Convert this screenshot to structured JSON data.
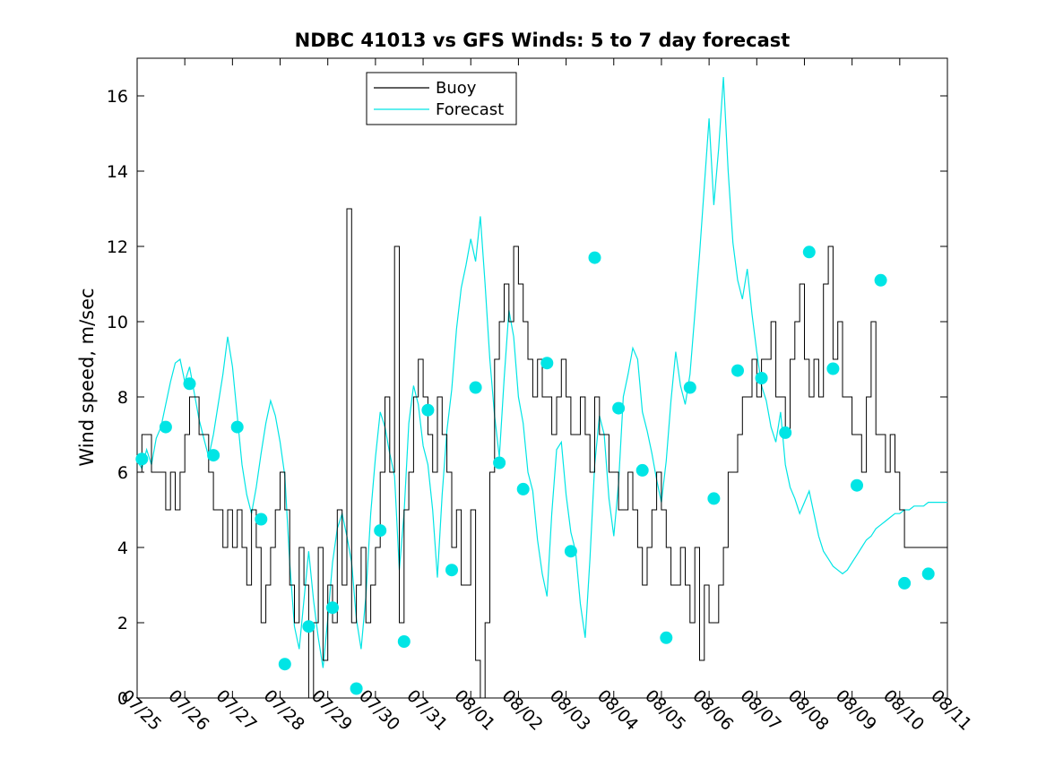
{
  "chart_data": {
    "type": "line",
    "title": "NDBC 41013 vs GFS Winds: 5 to 7 day forecast",
    "xlabel": "",
    "ylabel": "Wind speed, m/sec",
    "xlim": [
      0,
      17
    ],
    "ylim": [
      0,
      17
    ],
    "x_tick_labels": [
      "07/25",
      "07/26",
      "07/27",
      "07/28",
      "07/29",
      "07/30",
      "07/31",
      "08/01",
      "08/02",
      "08/03",
      "08/04",
      "08/05",
      "08/06",
      "08/07",
      "08/08",
      "08/09",
      "08/10",
      "08/11"
    ],
    "y_ticks": [
      0,
      2,
      4,
      6,
      8,
      10,
      12,
      14,
      16
    ],
    "grid": false,
    "legend_position": "top-left",
    "colors": {
      "buoy": "#000000",
      "forecast": "#00e5e5"
    },
    "series": [
      {
        "name": "Buoy",
        "x": [
          0,
          0.1,
          0.2,
          0.3,
          0.4,
          0.5,
          0.6,
          0.7,
          0.8,
          0.9,
          1.0,
          1.1,
          1.2,
          1.3,
          1.4,
          1.5,
          1.6,
          1.7,
          1.8,
          1.9,
          2.0,
          2.1,
          2.2,
          2.3,
          2.4,
          2.5,
          2.6,
          2.7,
          2.8,
          2.9,
          3.0,
          3.1,
          3.2,
          3.3,
          3.4,
          3.5,
          3.6,
          3.7,
          3.8,
          3.9,
          4.0,
          4.1,
          4.2,
          4.3,
          4.4,
          4.5,
          4.6,
          4.7,
          4.8,
          4.9,
          5.0,
          5.1,
          5.2,
          5.3,
          5.4,
          5.5,
          5.6,
          5.7,
          5.8,
          5.9,
          6.0,
          6.1,
          6.2,
          6.3,
          6.4,
          6.5,
          6.6,
          6.7,
          6.8,
          6.9,
          7.0,
          7.1,
          7.2,
          7.3,
          7.4,
          7.5,
          7.6,
          7.7,
          7.8,
          7.9,
          8.0,
          8.1,
          8.2,
          8.3,
          8.4,
          8.5,
          8.6,
          8.7,
          8.8,
          8.9,
          9.0,
          9.1,
          9.2,
          9.3,
          9.4,
          9.5,
          9.6,
          9.7,
          9.8,
          9.9,
          10.0,
          10.1,
          10.2,
          10.3,
          10.4,
          10.5,
          10.6,
          10.7,
          10.8,
          10.9,
          11.0,
          11.1,
          11.2,
          11.3,
          11.4,
          11.5,
          11.6,
          11.7,
          11.8,
          11.9,
          12.0,
          12.1,
          12.2,
          12.3,
          12.4,
          12.5,
          12.6,
          12.7,
          12.8,
          12.9,
          13.0,
          13.1,
          13.2,
          13.3,
          13.4,
          13.5,
          13.6,
          13.7,
          13.8,
          13.9,
          14.0,
          14.1,
          14.2,
          14.3,
          14.4,
          14.5,
          14.6,
          14.7,
          14.8,
          14.9,
          15.0,
          15.1,
          15.2,
          15.3,
          15.4,
          15.5,
          15.6,
          15.7,
          15.8,
          15.9,
          16.0,
          16.1,
          16.2,
          16.3,
          16.4,
          16.5,
          16.6,
          16.7,
          16.8,
          16.9,
          17.0
        ],
        "values": [
          6,
          7,
          7,
          6,
          6,
          6,
          5,
          6,
          5,
          6,
          7,
          8,
          8,
          7,
          7,
          6,
          5,
          5,
          4,
          5,
          4,
          5,
          4,
          3,
          5,
          4,
          2,
          3,
          4,
          5,
          6,
          5,
          3,
          2,
          4,
          3,
          0,
          2,
          4,
          1,
          3,
          2,
          5,
          3,
          13,
          2,
          3,
          4,
          2,
          3,
          4,
          6,
          8,
          6,
          12,
          2,
          5,
          6,
          8,
          9,
          8,
          7,
          6,
          8,
          7,
          6,
          4,
          5,
          3,
          3,
          5,
          1,
          0,
          2,
          6,
          9,
          10,
          11,
          10,
          12,
          11,
          10,
          9,
          8,
          9,
          8,
          8,
          7,
          8,
          9,
          8,
          7,
          7,
          8,
          7,
          6,
          8,
          7,
          7,
          6,
          6,
          5,
          5,
          6,
          5,
          4,
          3,
          4,
          5,
          6,
          5,
          4,
          3,
          3,
          4,
          3,
          2,
          4,
          1,
          3,
          2,
          2,
          3,
          4,
          6,
          6,
          7,
          8,
          8,
          9,
          8,
          9,
          9,
          10,
          8,
          8,
          7,
          9,
          10,
          11,
          9,
          8,
          9,
          8,
          11,
          12,
          9,
          10,
          8,
          8,
          7,
          7,
          6,
          8,
          10,
          7,
          7,
          6,
          7,
          6,
          5,
          4,
          4,
          4,
          4,
          4,
          4,
          4,
          4,
          4,
          4
        ]
      },
      {
        "name": "Forecast",
        "x": [
          0,
          0.1,
          0.2,
          0.3,
          0.4,
          0.5,
          0.6,
          0.7,
          0.8,
          0.9,
          1.0,
          1.1,
          1.2,
          1.3,
          1.4,
          1.5,
          1.6,
          1.7,
          1.8,
          1.9,
          2.0,
          2.1,
          2.2,
          2.3,
          2.4,
          2.5,
          2.6,
          2.7,
          2.8,
          2.9,
          3.0,
          3.1,
          3.2,
          3.3,
          3.4,
          3.5,
          3.6,
          3.7,
          3.8,
          3.9,
          4.0,
          4.1,
          4.2,
          4.3,
          4.4,
          4.5,
          4.6,
          4.7,
          4.8,
          4.9,
          5.0,
          5.1,
          5.2,
          5.3,
          5.4,
          5.5,
          5.6,
          5.7,
          5.8,
          5.9,
          6.0,
          6.1,
          6.2,
          6.3,
          6.4,
          6.5,
          6.6,
          6.7,
          6.8,
          6.9,
          7.0,
          7.1,
          7.2,
          7.3,
          7.4,
          7.5,
          7.6,
          7.7,
          7.8,
          7.9,
          8.0,
          8.1,
          8.2,
          8.3,
          8.4,
          8.5,
          8.6,
          8.7,
          8.8,
          8.9,
          9.0,
          9.1,
          9.2,
          9.3,
          9.4,
          9.5,
          9.6,
          9.7,
          9.8,
          9.9,
          10.0,
          10.1,
          10.2,
          10.3,
          10.4,
          10.5,
          10.6,
          10.7,
          10.8,
          10.9,
          11.0,
          11.1,
          11.2,
          11.3,
          11.4,
          11.5,
          11.6,
          11.7,
          11.8,
          11.9,
          12.0,
          12.1,
          12.2,
          12.3,
          12.4,
          12.5,
          12.6,
          12.7,
          12.8,
          12.9,
          13.0,
          13.1,
          13.2,
          13.3,
          13.4,
          13.5,
          13.6,
          13.7,
          13.8,
          13.9,
          14.0,
          14.1,
          14.2,
          14.3,
          14.4,
          14.5,
          14.6,
          14.7,
          14.8,
          14.9,
          15.0,
          15.1,
          15.2,
          15.3,
          15.4,
          15.5,
          15.6,
          15.7,
          15.8,
          15.9,
          16.0,
          16.1,
          16.2,
          16.3,
          16.4,
          16.5,
          16.6,
          16.7,
          16.8,
          16.9,
          17.0
        ],
        "values": [
          6.3,
          6.1,
          6.6,
          6.2,
          6.9,
          7.2,
          7.8,
          8.4,
          8.9,
          9.0,
          8.4,
          8.8,
          8.1,
          7.4,
          6.9,
          6.4,
          7.0,
          7.8,
          8.6,
          9.6,
          8.8,
          7.5,
          6.2,
          5.4,
          4.9,
          5.6,
          6.5,
          7.3,
          7.9,
          7.5,
          6.8,
          5.9,
          3.6,
          1.9,
          1.3,
          2.6,
          3.9,
          2.6,
          1.6,
          0.8,
          2.1,
          3.6,
          4.5,
          4.9,
          4.3,
          3.6,
          2.1,
          1.3,
          2.7,
          4.9,
          6.4,
          7.6,
          7.2,
          6.5,
          5.9,
          3.4,
          4.9,
          7.3,
          8.3,
          7.8,
          6.7,
          6.2,
          5.0,
          3.2,
          5.4,
          7.1,
          8.2,
          9.8,
          10.9,
          11.5,
          12.2,
          11.6,
          12.8,
          11.0,
          9.0,
          7.5,
          6.4,
          8.5,
          10.3,
          9.6,
          8.0,
          7.3,
          6.0,
          5.5,
          4.2,
          3.3,
          2.7,
          4.9,
          6.6,
          6.8,
          5.4,
          4.4,
          3.9,
          2.5,
          1.6,
          3.7,
          6.2,
          7.5,
          7.0,
          5.3,
          4.3,
          5.7,
          8.0,
          8.6,
          9.3,
          9.0,
          7.6,
          7.1,
          6.5,
          5.8,
          5.2,
          6.3,
          7.9,
          9.2,
          8.3,
          7.8,
          8.6,
          10.2,
          11.8,
          13.6,
          15.4,
          13.1,
          14.6,
          16.5,
          14.0,
          12.1,
          11.1,
          10.6,
          11.4,
          10.2,
          9.2,
          8.3,
          7.9,
          7.2,
          6.8,
          7.6,
          6.2,
          5.6,
          5.3,
          4.9,
          5.2,
          5.5,
          4.9,
          4.3,
          3.9,
          3.7,
          3.5,
          3.4,
          3.3,
          3.4,
          3.6,
          3.8,
          4.0,
          4.2,
          4.3,
          4.5,
          4.6,
          4.7,
          4.8,
          4.9,
          4.9,
          5.0,
          5.0,
          5.1,
          5.1,
          5.1,
          5.2,
          5.2,
          5.2,
          5.2,
          5.2
        ]
      }
    ],
    "markers": {
      "name": "Forecast",
      "x": [
        0.1,
        0.6,
        1.1,
        1.6,
        2.1,
        2.6,
        3.1,
        3.6,
        4.1,
        4.6,
        5.1,
        5.6,
        6.1,
        6.6,
        7.1,
        7.6,
        8.1,
        8.6,
        9.1,
        9.6,
        10.1,
        10.6,
        11.1,
        11.6,
        12.1,
        12.6,
        13.1,
        13.6,
        14.1,
        14.6,
        15.1,
        15.6,
        16.1,
        16.6
      ],
      "values": [
        6.35,
        7.2,
        8.35,
        6.45,
        7.2,
        4.75,
        0.9,
        1.9,
        2.4,
        0.25,
        4.45,
        1.5,
        7.65,
        3.4,
        8.25,
        6.25,
        5.55,
        8.9,
        3.9,
        11.7,
        7.7,
        6.05,
        1.6,
        8.25,
        5.3,
        8.7,
        8.5,
        7.05,
        11.85,
        8.75,
        5.65,
        11.1,
        3.05,
        3.3
      ]
    }
  }
}
